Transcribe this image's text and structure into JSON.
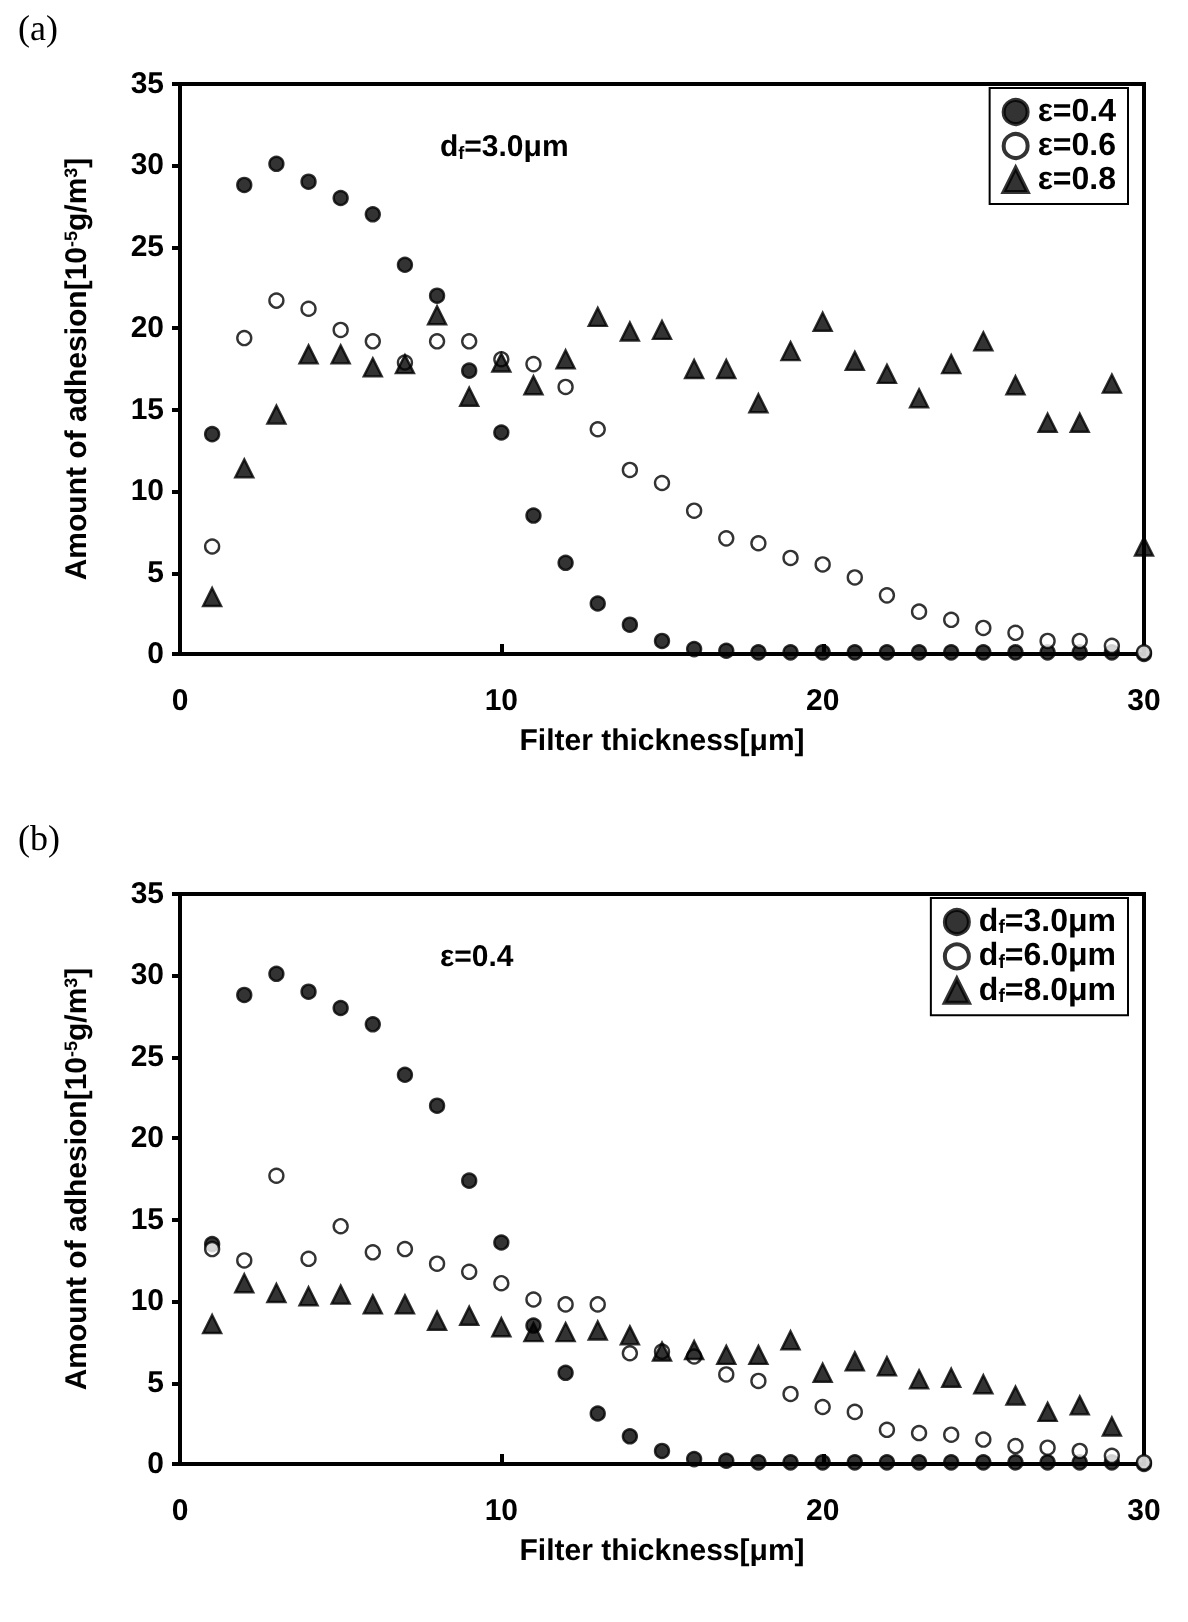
{
  "chart_data": [
    {
      "type": "scatter",
      "title": "(a)",
      "xlabel": "Filter thickness[μm]",
      "ylabel": "Amount of adhesion[10$^{-5}$g/m$^{3}$]",
      "annotations": [
        "d$_{f}$=3.0μm"
      ],
      "x": [
        1,
        2,
        3,
        4,
        5,
        6,
        7,
        8,
        9,
        10,
        11,
        12,
        13,
        14,
        15,
        16,
        17,
        18,
        19,
        20,
        21,
        22,
        23,
        24,
        25,
        26,
        27,
        28,
        29,
        30
      ],
      "series": [
        {
          "name": "ε=0.4",
          "color": "#000000",
          "marker": "circle",
          "values": [
            13.5,
            28.8,
            30.1,
            29,
            28,
            27,
            23.9,
            22,
            17.4,
            13.6,
            8.5,
            5.6,
            3.1,
            1.8,
            0.8,
            0.3,
            0.2,
            0.1,
            0.1,
            0.1,
            0.1,
            0.1,
            0.1,
            0.1,
            0.1,
            0.1,
            0.1,
            0.1,
            0.1,
            0
          ]
        },
        {
          "name": "ε=0.6",
          "color": "#ffffff",
          "marker": "circle",
          "values": [
            6.6,
            19.4,
            21.7,
            21.2,
            19.9,
            19.2,
            17.9,
            19.2,
            19.2,
            18.1,
            17.8,
            16.4,
            13.8,
            11.3,
            10.5,
            8.8,
            7.1,
            6.8,
            5.9,
            5.5,
            4.7,
            3.6,
            2.6,
            2.1,
            1.6,
            1.3,
            0.8,
            0.8,
            0.5,
            0.1
          ]
        },
        {
          "name": "ε=0.8",
          "color": "#000000",
          "marker": "triangle",
          "values": [
            3.5,
            11.4,
            14.7,
            18.4,
            18.4,
            17.6,
            17.8,
            20.8,
            15.8,
            17.9,
            16.5,
            18.1,
            20.7,
            19.8,
            19.9,
            17.5,
            17.5,
            15.4,
            18.6,
            20.4,
            18,
            17.2,
            15.7,
            17.8,
            19.2,
            16.5,
            14.2,
            14.2,
            16.6,
            6.6
          ]
        }
      ],
      "xlim": [
        0,
        30
      ],
      "xticks": [
        0,
        10,
        20,
        30
      ],
      "ylim": [
        0,
        35
      ],
      "yticks": [
        0,
        5,
        10,
        15,
        20,
        25,
        30,
        35
      ],
      "legend": "top right"
    },
    {
      "type": "scatter",
      "title": "(b)",
      "xlabel": "Filter thickness[μm]",
      "ylabel": "Amount of adhesion[10$^{-5}$g/m$^{3}$]",
      "annotations": [
        "ε=0.4"
      ],
      "x": [
        1,
        2,
        3,
        4,
        5,
        6,
        7,
        8,
        9,
        10,
        11,
        12,
        13,
        14,
        15,
        16,
        17,
        18,
        19,
        20,
        21,
        22,
        23,
        24,
        25,
        26,
        27,
        28,
        29,
        30
      ],
      "series": [
        {
          "name": "d$_{f}$=3.0μm",
          "color": "#000000",
          "marker": "circle",
          "values": [
            13.5,
            28.8,
            30.1,
            29,
            28,
            27,
            23.9,
            22,
            17.4,
            13.6,
            8.5,
            5.6,
            3.1,
            1.7,
            0.8,
            0.3,
            0.2,
            0.1,
            0.1,
            0.1,
            0.1,
            0.1,
            0.1,
            0.1,
            0.1,
            0.1,
            0.1,
            0.1,
            0.1,
            0
          ]
        },
        {
          "name": "d$_{f}$=6.0μm",
          "color": "#ffffff",
          "marker": "circle",
          "values": [
            13.2,
            12.5,
            17.7,
            12.6,
            14.6,
            13,
            13.2,
            12.3,
            11.8,
            11.1,
            10.1,
            9.8,
            9.8,
            6.8,
            6.9,
            6.6,
            5.5,
            5.1,
            4.3,
            3.5,
            3.2,
            2.1,
            1.9,
            1.8,
            1.5,
            1.1,
            1,
            0.8,
            0.5,
            0.1
          ]
        },
        {
          "name": "d$_{f}$=8.0μm",
          "color": "#000000",
          "marker": "triangle",
          "values": [
            8.6,
            11.1,
            10.5,
            10.3,
            10.4,
            9.8,
            9.8,
            8.8,
            9.1,
            8.4,
            8.1,
            8.1,
            8.2,
            7.9,
            6.9,
            7,
            6.7,
            6.7,
            7.6,
            5.6,
            6.3,
            6,
            5.2,
            5.3,
            4.9,
            4.2,
            3.2,
            3.6,
            2.3,
            null
          ]
        }
      ],
      "xlim": [
        0,
        30
      ],
      "xticks": [
        0,
        10,
        20,
        30
      ],
      "ylim": [
        0,
        35
      ],
      "yticks": [
        0,
        5,
        10,
        15,
        20,
        25,
        30,
        35
      ],
      "legend": "top right"
    }
  ]
}
